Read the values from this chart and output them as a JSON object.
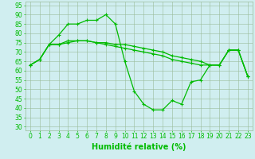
{
  "x": [
    0,
    1,
    2,
    3,
    4,
    5,
    6,
    7,
    8,
    9,
    10,
    11,
    12,
    13,
    14,
    15,
    16,
    17,
    18,
    19,
    20,
    21,
    22,
    23
  ],
  "series1": [
    63,
    66,
    74,
    79,
    85,
    85,
    87,
    87,
    90,
    85,
    65,
    49,
    42,
    39,
    39,
    44,
    42,
    54,
    55,
    63,
    63,
    71,
    71,
    57
  ],
  "series2": [
    63,
    66,
    74,
    74,
    75,
    76,
    76,
    75,
    74,
    73,
    72,
    71,
    70,
    69,
    68,
    66,
    65,
    64,
    63,
    63,
    63,
    71,
    71,
    57
  ],
  "series3": [
    63,
    66,
    74,
    74,
    76,
    76,
    76,
    75,
    75,
    74,
    74,
    73,
    72,
    71,
    70,
    68,
    67,
    66,
    65,
    63,
    63,
    71,
    71,
    57
  ],
  "line_color": "#00bb00",
  "bg_color": "#d0eef0",
  "grid_color": "#99bb99",
  "xlabel": "Humidité relative (%)",
  "ylim": [
    28,
    97
  ],
  "xlim": [
    -0.5,
    23.5
  ],
  "yticks": [
    30,
    35,
    40,
    45,
    50,
    55,
    60,
    65,
    70,
    75,
    80,
    85,
    90,
    95
  ],
  "xticks": [
    0,
    1,
    2,
    3,
    4,
    5,
    6,
    7,
    8,
    9,
    10,
    11,
    12,
    13,
    14,
    15,
    16,
    17,
    18,
    19,
    20,
    21,
    22,
    23
  ],
  "marker": "+",
  "markersize": 3.5,
  "linewidth": 0.9,
  "xlabel_fontsize": 7,
  "tick_fontsize": 5.5,
  "tick_color": "#00bb00",
  "xlabel_color": "#00bb00"
}
